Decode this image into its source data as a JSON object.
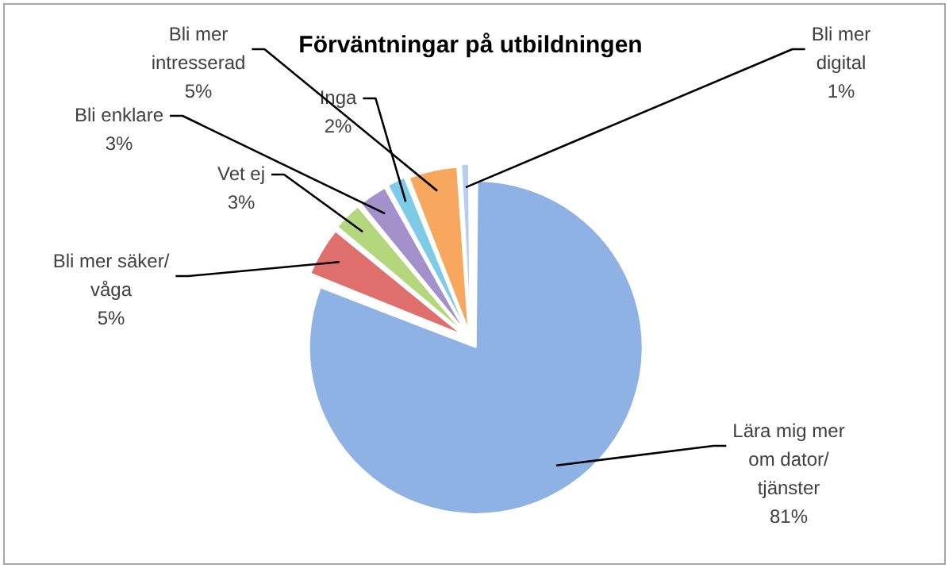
{
  "chart_data": {
    "type": "pie",
    "title": "Förväntningar på utbildningen",
    "categories": [
      "Lära mig mer om dator/ tjänster",
      "Bli mer säker/ våga",
      "Vet ej",
      "Bli enklare",
      "Inga",
      "Bli mer intresserad",
      "Bli mer digital"
    ],
    "values": [
      81,
      5,
      3,
      3,
      2,
      5,
      1
    ],
    "value_labels": [
      "81%",
      "5%",
      "3%",
      "3%",
      "2%",
      "5%",
      "1%"
    ],
    "colors": [
      "#8fb2e4",
      "#de6f6c",
      "#b4d67c",
      "#a391cb",
      "#7ecbe8",
      "#f7a85e",
      "#b8cdef"
    ],
    "legend": false
  }
}
